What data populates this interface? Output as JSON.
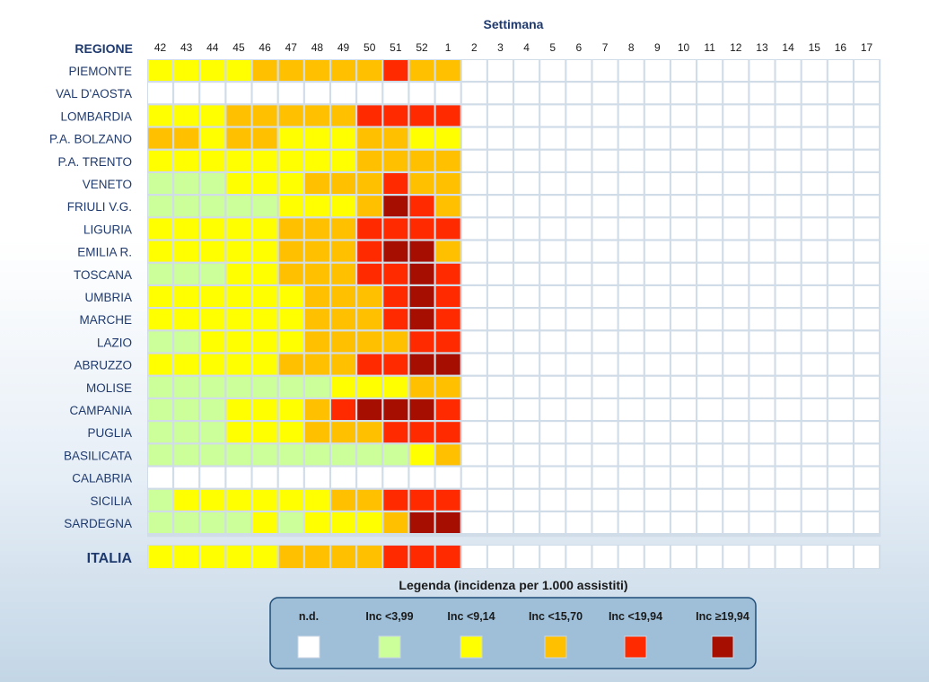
{
  "chart_data": {
    "type": "heatmap",
    "title": "Settimana",
    "row_header": "REGIONE",
    "weeks": [
      "42",
      "43",
      "44",
      "45",
      "46",
      "47",
      "48",
      "49",
      "50",
      "51",
      "52",
      "1",
      "2",
      "3",
      "4",
      "5",
      "6",
      "7",
      "8",
      "9",
      "10",
      "11",
      "12",
      "13",
      "14",
      "15",
      "16",
      "17"
    ],
    "regions": [
      {
        "name": "PIEMONTE",
        "levels": [
          2,
          2,
          2,
          2,
          3,
          3,
          3,
          3,
          3,
          4,
          3,
          3
        ]
      },
      {
        "name": "VAL D'AOSTA",
        "levels": [
          0,
          0,
          0,
          0,
          0,
          0,
          0,
          0,
          0,
          0,
          0,
          0
        ]
      },
      {
        "name": "LOMBARDIA",
        "levels": [
          2,
          2,
          2,
          3,
          3,
          3,
          3,
          3,
          4,
          4,
          4,
          4
        ]
      },
      {
        "name": "P.A. BOLZANO",
        "levels": [
          3,
          3,
          2,
          3,
          3,
          2,
          2,
          2,
          3,
          3,
          2,
          2
        ]
      },
      {
        "name": "P.A. TRENTO",
        "levels": [
          2,
          2,
          2,
          2,
          2,
          2,
          2,
          2,
          3,
          3,
          3,
          3
        ]
      },
      {
        "name": "VENETO",
        "levels": [
          1,
          1,
          1,
          2,
          2,
          2,
          3,
          3,
          3,
          4,
          3,
          3
        ]
      },
      {
        "name": "FRIULI V.G.",
        "levels": [
          1,
          1,
          1,
          1,
          1,
          2,
          2,
          2,
          3,
          5,
          4,
          3
        ]
      },
      {
        "name": "LIGURIA",
        "levels": [
          2,
          2,
          2,
          2,
          2,
          3,
          3,
          3,
          4,
          4,
          4,
          4
        ]
      },
      {
        "name": "EMILIA R.",
        "levels": [
          2,
          2,
          2,
          2,
          2,
          3,
          3,
          3,
          4,
          5,
          5,
          3
        ]
      },
      {
        "name": "TOSCANA",
        "levels": [
          1,
          1,
          1,
          2,
          2,
          3,
          3,
          3,
          4,
          4,
          5,
          4
        ]
      },
      {
        "name": "UMBRIA",
        "levels": [
          2,
          2,
          2,
          2,
          2,
          2,
          3,
          3,
          3,
          4,
          5,
          4
        ]
      },
      {
        "name": "MARCHE",
        "levels": [
          2,
          2,
          2,
          2,
          2,
          2,
          3,
          3,
          3,
          4,
          5,
          4
        ]
      },
      {
        "name": "LAZIO",
        "levels": [
          1,
          1,
          2,
          2,
          2,
          2,
          3,
          3,
          3,
          3,
          4,
          4
        ]
      },
      {
        "name": "ABRUZZO",
        "levels": [
          2,
          2,
          2,
          2,
          2,
          3,
          3,
          3,
          4,
          4,
          5,
          5
        ]
      },
      {
        "name": "MOLISE",
        "levels": [
          1,
          1,
          1,
          1,
          1,
          1,
          1,
          2,
          2,
          2,
          3,
          3
        ]
      },
      {
        "name": "CAMPANIA",
        "levels": [
          1,
          1,
          1,
          2,
          2,
          2,
          3,
          4,
          5,
          5,
          5,
          4
        ]
      },
      {
        "name": "PUGLIA",
        "levels": [
          1,
          1,
          1,
          2,
          2,
          2,
          3,
          3,
          3,
          4,
          4,
          4
        ]
      },
      {
        "name": "BASILICATA",
        "levels": [
          1,
          1,
          1,
          1,
          1,
          1,
          1,
          1,
          1,
          1,
          2,
          3
        ]
      },
      {
        "name": "CALABRIA",
        "levels": [
          0,
          0,
          0,
          0,
          0,
          0,
          0,
          0,
          0,
          0,
          0,
          0
        ]
      },
      {
        "name": "SICILIA",
        "levels": [
          1,
          2,
          2,
          2,
          2,
          2,
          2,
          3,
          3,
          4,
          4,
          4
        ]
      },
      {
        "name": "SARDEGNA",
        "levels": [
          1,
          1,
          1,
          1,
          2,
          1,
          2,
          2,
          2,
          3,
          5,
          5
        ]
      }
    ],
    "total": {
      "name": "ITALIA",
      "levels": [
        2,
        2,
        2,
        2,
        2,
        3,
        3,
        3,
        3,
        4,
        4,
        4
      ]
    },
    "legend": {
      "title": "Legenda (incidenza per 1.000 assistiti)",
      "classes": [
        {
          "label": "n.d.",
          "color": "#ffffff"
        },
        {
          "label": "Inc <3,99",
          "color": "#ccff99"
        },
        {
          "label": "Inc <9,14",
          "color": "#ffff00"
        },
        {
          "label": "Inc <15,70",
          "color": "#ffc000"
        },
        {
          "label": "Inc <19,94",
          "color": "#ff2a00"
        },
        {
          "label": "Inc ≥19,94",
          "color": "#a50e00"
        }
      ]
    },
    "empty_cell_color": "#ffffff",
    "grid_color": "#d0dce8"
  }
}
